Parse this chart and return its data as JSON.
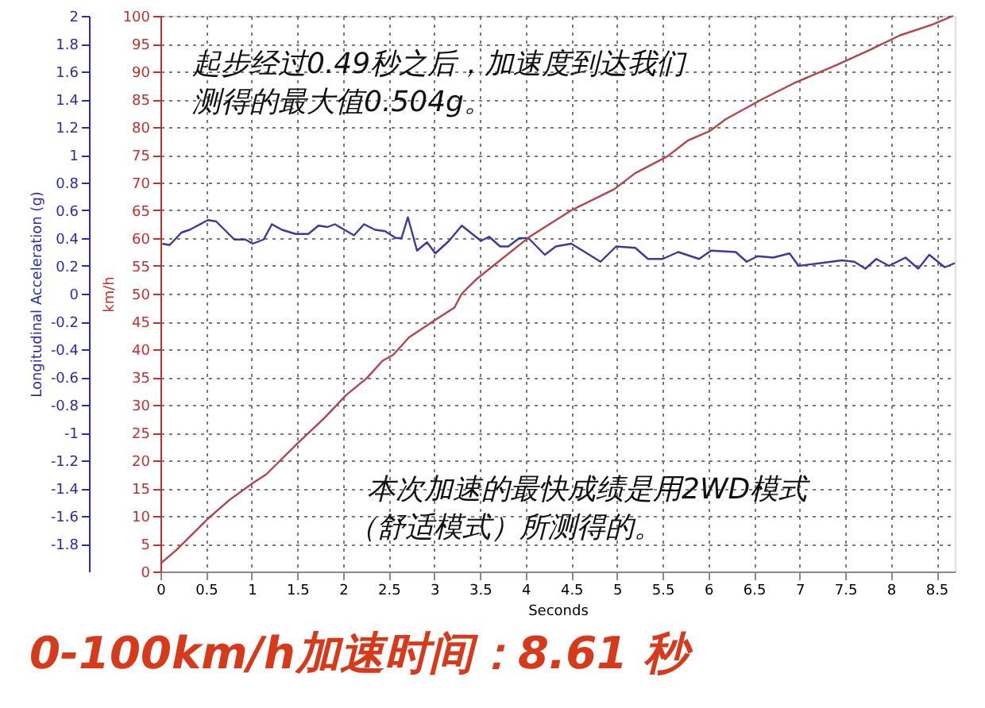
{
  "chart_data": {
    "type": "line",
    "title": "0-100km/h加速时间：8.61 秒",
    "xlabel": "Seconds",
    "ylabel": "Longitudinal Acceleration (g)",
    "y2label": "km/h",
    "annotations": [
      "起步经过0.49秒之后，加速度到达我们",
      "测得的最大值0.504g。",
      "本次加速的最快成绩是用2WD模式",
      "（舒适模式）所测得的。"
    ],
    "xlim": [
      0,
      8.7
    ],
    "xticks": [
      0,
      0.5,
      1,
      1.5,
      2,
      2.5,
      3,
      3.5,
      4,
      4.5,
      5,
      5.5,
      6,
      6.5,
      7,
      7.5,
      8,
      8.5
    ],
    "ylim": [
      -2,
      2
    ],
    "yticks": [
      -1.8,
      -1.6,
      -1.4,
      -1.2,
      -1,
      -0.8,
      -0.6,
      -0.4,
      -0.2,
      0,
      0.2,
      0.4,
      0.6,
      0.8,
      1,
      1.2,
      1.4,
      1.6,
      1.8,
      2
    ],
    "y2lim": [
      0,
      100
    ],
    "y2ticks": [
      0,
      5,
      10,
      15,
      20,
      25,
      30,
      35,
      40,
      45,
      50,
      55,
      60,
      65,
      70,
      75,
      80,
      85,
      90,
      95,
      100
    ],
    "grid": true,
    "marker": "none",
    "line_style": "solid",
    "series": [
      {
        "color": "#3a3a9e",
        "x": [
          0.02,
          0.1,
          0.23,
          0.32,
          0.52,
          0.61,
          0.81,
          0.93,
          1.01,
          1.13,
          1.22,
          1.33,
          1.48,
          1.62,
          1.73,
          1.83,
          1.91,
          2.12,
          2.23,
          2.35,
          2.46,
          2.58,
          2.64,
          2.71,
          2.81,
          2.92,
          3.01,
          3.16,
          3.3,
          3.51,
          3.6,
          3.72,
          3.81,
          3.93,
          4.03,
          4.21,
          4.33,
          4.5,
          4.82,
          4.99,
          5.2,
          5.34,
          5.5,
          5.67,
          5.9,
          6.03,
          6.3,
          6.42,
          6.54,
          6.71,
          6.89,
          6.99,
          7.23,
          7.46,
          7.6,
          7.72,
          7.84,
          7.98,
          8.16,
          8.3,
          8.42,
          8.59,
          8.7
        ],
        "values": [
          0.36,
          0.35,
          0.44,
          0.46,
          0.53,
          0.52,
          0.39,
          0.39,
          0.36,
          0.39,
          0.5,
          0.46,
          0.43,
          0.43,
          0.49,
          0.48,
          0.5,
          0.42,
          0.5,
          0.46,
          0.45,
          0.4,
          0.4,
          0.55,
          0.31,
          0.37,
          0.29,
          0.38,
          0.49,
          0.38,
          0.41,
          0.34,
          0.34,
          0.4,
          0.4,
          0.28,
          0.34,
          0.36,
          0.23,
          0.34,
          0.33,
          0.25,
          0.25,
          0.3,
          0.25,
          0.31,
          0.3,
          0.23,
          0.27,
          0.26,
          0.29,
          0.2,
          0.22,
          0.24,
          0.23,
          0.18,
          0.25,
          0.2,
          0.26,
          0.18,
          0.28,
          0.19,
          0.22
        ]
      },
      {
        "color": "#b0454a",
        "axis": "y2",
        "x": [
          0,
          0.17,
          0.52,
          0.75,
          1.01,
          1.16,
          1.51,
          1.8,
          2.03,
          2.26,
          2.43,
          2.55,
          2.72,
          3.01,
          3.22,
          3.3,
          3.46,
          4.04,
          4.5,
          4.97,
          5.2,
          5.55,
          5.78,
          6.02,
          6.19,
          6.59,
          6.94,
          7.41,
          7.76,
          8.1,
          8.45,
          8.68
        ],
        "values": [
          1.4,
          3.8,
          9.5,
          12.8,
          15.9,
          17.5,
          23.2,
          27.7,
          31.7,
          34.8,
          37.9,
          39,
          42.1,
          45.3,
          47.5,
          50,
          52.6,
          60.2,
          65,
          68.8,
          71.7,
          74.7,
          77.6,
          79.3,
          81.4,
          85,
          87.9,
          91.2,
          93.8,
          96.5,
          98.4,
          100
        ]
      }
    ]
  }
}
